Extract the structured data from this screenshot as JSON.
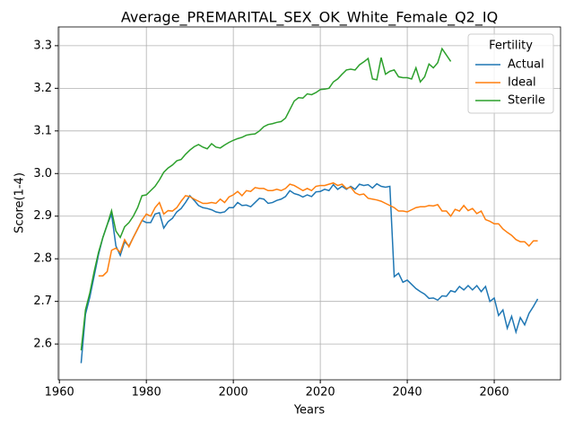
{
  "chart_data": {
    "type": "line",
    "title": "Average_PREMARITAL_SEX_OK_White_Female_Q2_IQ",
    "x_label": "Years",
    "y_label": "Score(1-4)",
    "legend_title": "Fertility",
    "legend_position": "upper right",
    "grid": true,
    "xlim": [
      1959.75,
      2075.25
    ],
    "ylim": [
      2.516,
      3.344
    ],
    "xticks": [
      1960,
      1980,
      2000,
      2020,
      2040,
      2060
    ],
    "yticks": [
      2.6,
      2.7,
      2.8,
      2.9,
      {
        "value": 3,
        "label": "3.0"
      },
      3.1,
      3.2,
      3.3
    ],
    "series": [
      {
        "name": "Actual",
        "color": "#1f77b4",
        "x": [
          1965,
          1966,
          1967,
          1968,
          1969,
          1970,
          1971,
          1972,
          1973,
          1974,
          1975,
          1976,
          1977,
          1978,
          1979,
          1980,
          1981,
          1982,
          1983,
          1984,
          1985,
          1986,
          1987,
          1988,
          1989,
          1990,
          1991,
          1992,
          1993,
          1994,
          1995,
          1996,
          1997,
          1998,
          1999,
          2000,
          2001,
          2002,
          2003,
          2004,
          2005,
          2006,
          2007,
          2008,
          2009,
          2010,
          2011,
          2012,
          2013,
          2014,
          2015,
          2016,
          2017,
          2018,
          2019,
          2020,
          2021,
          2022,
          2023,
          2024,
          2025,
          2026,
          2027,
          2028,
          2029,
          2030,
          2031,
          2032,
          2033,
          2034,
          2035,
          2036,
          2037,
          2038,
          2039,
          2040,
          2041,
          2042,
          2043,
          2044,
          2045,
          2046,
          2047,
          2048,
          2049,
          2050,
          2051,
          2052,
          2053,
          2054,
          2055,
          2056,
          2057,
          2058,
          2059,
          2060,
          2061,
          2062,
          2063,
          2064,
          2065,
          2066,
          2067,
          2068,
          2069,
          2070
        ],
        "values": [
          2.555,
          2.67,
          2.71,
          2.76,
          2.81,
          2.85,
          2.88,
          2.905,
          2.83,
          2.808,
          2.84,
          2.83,
          2.85,
          2.87,
          2.89,
          2.885,
          2.885,
          2.905,
          2.908,
          2.872,
          2.887,
          2.895,
          2.91,
          2.918,
          2.932,
          2.948,
          2.937,
          2.925,
          2.92,
          2.918,
          2.915,
          2.91,
          2.908,
          2.91,
          2.92,
          2.92,
          2.932,
          2.925,
          2.926,
          2.922,
          2.932,
          2.942,
          2.94,
          2.93,
          2.932,
          2.937,
          2.94,
          2.946,
          2.96,
          2.953,
          2.95,
          2.945,
          2.95,
          2.946,
          2.957,
          2.958,
          2.963,
          2.96,
          2.974,
          2.963,
          2.97,
          2.963,
          2.97,
          2.963,
          2.975,
          2.972,
          2.974,
          2.966,
          2.976,
          2.97,
          2.968,
          2.97,
          2.758,
          2.766,
          2.745,
          2.75,
          2.74,
          2.73,
          2.723,
          2.717,
          2.707,
          2.708,
          2.703,
          2.713,
          2.712,
          2.725,
          2.722,
          2.735,
          2.727,
          2.737,
          2.727,
          2.737,
          2.723,
          2.735,
          2.7,
          2.708,
          2.667,
          2.68,
          2.637,
          2.665,
          2.628,
          2.662,
          2.645,
          2.672,
          2.688,
          2.706
        ]
      },
      {
        "name": "Ideal",
        "color": "#ff7f0e",
        "x": [
          1969,
          1970,
          1971,
          1972,
          1973,
          1974,
          1975,
          1976,
          1977,
          1978,
          1979,
          1980,
          1981,
          1982,
          1983,
          1984,
          1985,
          1986,
          1987,
          1988,
          1989,
          1990,
          1991,
          1992,
          1993,
          1994,
          1995,
          1996,
          1997,
          1998,
          1999,
          2000,
          2001,
          2002,
          2003,
          2004,
          2005,
          2006,
          2007,
          2008,
          2009,
          2010,
          2011,
          2012,
          2013,
          2014,
          2015,
          2016,
          2017,
          2018,
          2019,
          2020,
          2021,
          2022,
          2023,
          2024,
          2025,
          2026,
          2027,
          2028,
          2029,
          2030,
          2031,
          2032,
          2033,
          2034,
          2035,
          2036,
          2037,
          2038,
          2039,
          2040,
          2041,
          2042,
          2043,
          2044,
          2045,
          2046,
          2047,
          2048,
          2049,
          2050,
          2051,
          2052,
          2053,
          2054,
          2055,
          2056,
          2057,
          2058,
          2059,
          2060,
          2061,
          2062,
          2063,
          2064,
          2065,
          2066,
          2067,
          2068,
          2069,
          2070
        ],
        "values": [
          2.76,
          2.76,
          2.77,
          2.82,
          2.825,
          2.815,
          2.845,
          2.828,
          2.85,
          2.87,
          2.89,
          2.905,
          2.9,
          2.92,
          2.932,
          2.905,
          2.913,
          2.912,
          2.92,
          2.935,
          2.948,
          2.946,
          2.94,
          2.935,
          2.93,
          2.93,
          2.932,
          2.93,
          2.94,
          2.932,
          2.945,
          2.95,
          2.958,
          2.948,
          2.96,
          2.958,
          2.967,
          2.965,
          2.965,
          2.96,
          2.96,
          2.963,
          2.96,
          2.965,
          2.975,
          2.972,
          2.966,
          2.96,
          2.965,
          2.96,
          2.97,
          2.972,
          2.972,
          2.975,
          2.978,
          2.972,
          2.975,
          2.965,
          2.968,
          2.955,
          2.95,
          2.952,
          2.942,
          2.94,
          2.938,
          2.935,
          2.93,
          2.925,
          2.92,
          2.912,
          2.912,
          2.91,
          2.915,
          2.92,
          2.922,
          2.922,
          2.925,
          2.924,
          2.927,
          2.912,
          2.912,
          2.9,
          2.916,
          2.912,
          2.925,
          2.913,
          2.918,
          2.906,
          2.912,
          2.892,
          2.888,
          2.882,
          2.882,
          2.87,
          2.862,
          2.855,
          2.845,
          2.84,
          2.84,
          2.83,
          2.842,
          2.842
        ]
      },
      {
        "name": "Sterile",
        "color": "#2ca02c",
        "x": [
          1965,
          1966,
          1967,
          1968,
          1969,
          1970,
          1971,
          1972,
          1973,
          1974,
          1975,
          1976,
          1977,
          1978,
          1979,
          1980,
          1981,
          1982,
          1983,
          1984,
          1985,
          1986,
          1987,
          1988,
          1989,
          1990,
          1991,
          1992,
          1993,
          1994,
          1995,
          1996,
          1997,
          1998,
          1999,
          2000,
          2001,
          2002,
          2003,
          2004,
          2005,
          2006,
          2007,
          2008,
          2009,
          2010,
          2011,
          2012,
          2013,
          2014,
          2015,
          2016,
          2017,
          2018,
          2019,
          2020,
          2021,
          2022,
          2023,
          2024,
          2025,
          2026,
          2027,
          2028,
          2029,
          2030,
          2031,
          2032,
          2033,
          2034,
          2035,
          2036,
          2037,
          2038,
          2039,
          2040,
          2041,
          2042,
          2043,
          2044,
          2045,
          2046,
          2047,
          2048,
          2049,
          2050
        ],
        "values": [
          2.585,
          2.68,
          2.72,
          2.77,
          2.815,
          2.85,
          2.88,
          2.913,
          2.865,
          2.85,
          2.875,
          2.885,
          2.9,
          2.92,
          2.948,
          2.95,
          2.96,
          2.97,
          2.985,
          3.003,
          3.013,
          3.02,
          3.03,
          3.033,
          3.045,
          3.055,
          3.063,
          3.068,
          3.062,
          3.058,
          3.07,
          3.062,
          3.06,
          3.067,
          3.073,
          3.078,
          3.082,
          3.085,
          3.09,
          3.092,
          3.093,
          3.1,
          3.11,
          3.115,
          3.117,
          3.12,
          3.122,
          3.13,
          3.15,
          3.17,
          3.178,
          3.177,
          3.187,
          3.185,
          3.19,
          3.197,
          3.198,
          3.2,
          3.215,
          3.222,
          3.233,
          3.243,
          3.245,
          3.243,
          3.255,
          3.262,
          3.27,
          3.222,
          3.22,
          3.272,
          3.233,
          3.24,
          3.243,
          3.227,
          3.225,
          3.225,
          3.222,
          3.248,
          3.215,
          3.227,
          3.257,
          3.248,
          3.26,
          3.293,
          3.278,
          3.263
        ]
      }
    ]
  }
}
